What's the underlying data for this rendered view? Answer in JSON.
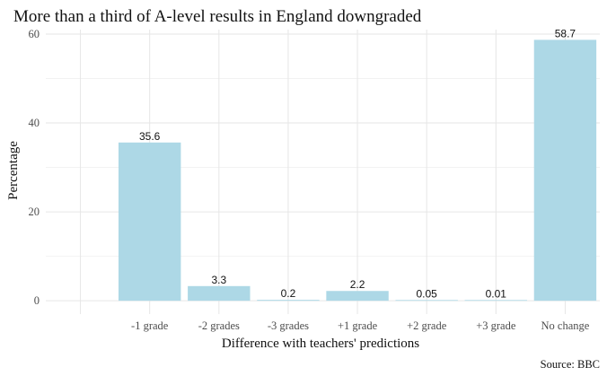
{
  "chart_data": {
    "type": "bar",
    "title": "More than a third of A-level results in England downgraded",
    "xlabel": "Difference with teachers' predictions",
    "ylabel": "Percentage",
    "caption": "Source: BBC",
    "categories": [
      "-1 grade",
      "-2 grades",
      "-3 grades",
      "+1 grade",
      "+2 grade",
      "+3 grade",
      "No change"
    ],
    "values": [
      35.6,
      3.3,
      0.2,
      2.2,
      0.05,
      0.01,
      58.7
    ],
    "value_labels": [
      "35.6",
      "3.3",
      "0.2",
      "2.2",
      "0.05",
      "0.01",
      "58.7"
    ],
    "yticks": [
      0,
      20,
      40,
      60
    ],
    "ytick_labels": [
      "0",
      "20",
      "40",
      "60"
    ],
    "ylim": [
      -3,
      61
    ],
    "grid": true,
    "legend": "none",
    "bar_color": "#add8e6"
  }
}
